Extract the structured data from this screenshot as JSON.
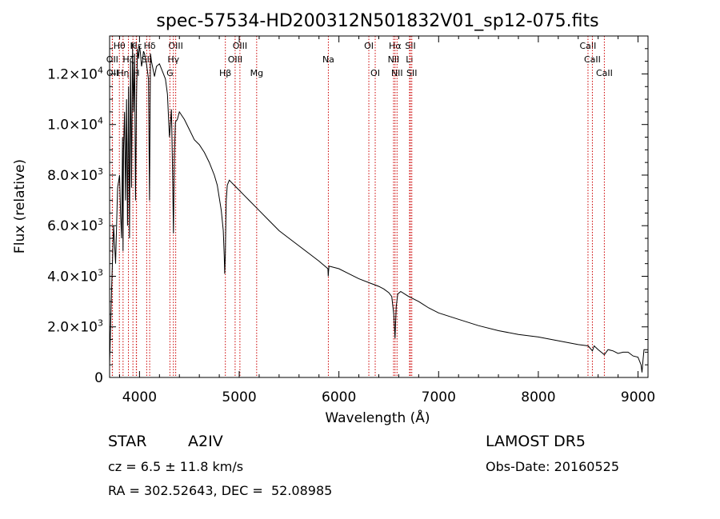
{
  "chart_data": {
    "type": "line",
    "title": "spec-57534-HD200312N501832V01_sp12-075.fits",
    "xlabel": "Wavelength (Å)",
    "ylabel": "Flux (relative)",
    "xlim": [
      3700,
      9100
    ],
    "ylim": [
      0,
      13500
    ],
    "x_ticks": [
      {
        "value": 4000,
        "label": "4000"
      },
      {
        "value": 5000,
        "label": "5000"
      },
      {
        "value": 6000,
        "label": "6000"
      },
      {
        "value": 7000,
        "label": "7000"
      },
      {
        "value": 8000,
        "label": "8000"
      },
      {
        "value": 9000,
        "label": "9000"
      }
    ],
    "y_ticks": [
      {
        "value": 0,
        "label": "0"
      },
      {
        "value": 2000,
        "label": "2.0×10",
        "exp": "3"
      },
      {
        "value": 4000,
        "label": "4.0×10",
        "exp": "3"
      },
      {
        "value": 6000,
        "label": "6.0×10",
        "exp": "3"
      },
      {
        "value": 8000,
        "label": "8.0×10",
        "exp": "3"
      },
      {
        "value": 10000,
        "label": "1.0×10",
        "exp": "4"
      },
      {
        "value": 12000,
        "label": "1.2×10",
        "exp": "4"
      }
    ],
    "series": [
      {
        "x": [
          3700,
          3720,
          3740,
          3760,
          3780,
          3800,
          3810,
          3820,
          3830,
          3835,
          3840,
          3850,
          3860,
          3870,
          3880,
          3890,
          3900,
          3910,
          3920,
          3930,
          3940,
          3950,
          3960,
          3970,
          3980,
          3990,
          4000,
          4010,
          4020,
          4030,
          4040,
          4050,
          4060,
          4070,
          4080,
          4090,
          4100,
          4110,
          4120,
          4130,
          4150,
          4170,
          4200,
          4230,
          4260,
          4280,
          4300,
          4320,
          4330,
          4340,
          4350,
          4360,
          4380,
          4400,
          4450,
          4500,
          4550,
          4600,
          4650,
          4700,
          4750,
          4780,
          4800,
          4820,
          4840,
          4850,
          4855,
          4861,
          4866,
          4870,
          4880,
          4900,
          4950,
          5000,
          5050,
          5100,
          5200,
          5300,
          5400,
          5500,
          5600,
          5700,
          5800,
          5890,
          5893,
          5896,
          5900,
          6000,
          6100,
          6200,
          6300,
          6400,
          6450,
          6500,
          6530,
          6550,
          6560,
          6563,
          6567,
          6575,
          6590,
          6620,
          6700,
          6800,
          6900,
          7000,
          7200,
          7400,
          7600,
          7800,
          8000,
          8200,
          8400,
          8500,
          8542,
          8560,
          8600,
          8662,
          8700,
          8750,
          8800,
          8850,
          8900,
          8950,
          9000,
          9030,
          9040,
          9050,
          9060,
          9100
        ],
        "y": [
          500,
          3500,
          6000,
          4500,
          7500,
          8000,
          6500,
          5500,
          9500,
          5000,
          9000,
          10500,
          7000,
          11000,
          6000,
          11500,
          5500,
          12500,
          7500,
          13000,
          10500,
          12800,
          7000,
          11200,
          13000,
          12600,
          13100,
          12800,
          12300,
          12500,
          12900,
          12800,
          12600,
          12400,
          12100,
          11800,
          7000,
          12800,
          12500,
          12300,
          11900,
          12300,
          12400,
          12100,
          11800,
          11200,
          9500,
          10600,
          8500,
          5700,
          8800,
          10100,
          10200,
          10500,
          10200,
          9800,
          9400,
          9200,
          8900,
          8500,
          8000,
          7600,
          7100,
          6600,
          5800,
          4800,
          4100,
          4900,
          6200,
          7000,
          7600,
          7800,
          7600,
          7400,
          7200,
          7000,
          6600,
          6200,
          5800,
          5500,
          5200,
          4900,
          4600,
          4300,
          4000,
          4200,
          4400,
          4300,
          4100,
          3900,
          3750,
          3600,
          3500,
          3350,
          3200,
          2500,
          1800,
          1550,
          2000,
          2800,
          3300,
          3400,
          3200,
          3000,
          2750,
          2550,
          2300,
          2050,
          1850,
          1700,
          1600,
          1450,
          1300,
          1250,
          1050,
          1250,
          1100,
          900,
          1100,
          1050,
          950,
          1000,
          1000,
          850,
          800,
          500,
          200,
          700,
          1100,
          1100
        ]
      }
    ],
    "line_markers": [
      {
        "name": "Hθ",
        "wl": 3798,
        "row": 1
      },
      {
        "name": "OII",
        "wl": 3727,
        "row": 2
      },
      {
        "name": "OII",
        "wl": 3729,
        "row": 3
      },
      {
        "name": "K",
        "wl": 3934,
        "row": 1
      },
      {
        "name": "Hε",
        "wl": 3970,
        "row": 1
      },
      {
        "name": "Hη",
        "wl": 3835,
        "row": 3
      },
      {
        "name": "Hζ",
        "wl": 3889,
        "row": 2
      },
      {
        "name": "H",
        "wl": 3968,
        "row": 3
      },
      {
        "name": "SII",
        "wl": 4072,
        "row": 2
      },
      {
        "name": "Hδ",
        "wl": 4102,
        "row": 1
      },
      {
        "name": "OIII",
        "wl": 4363,
        "row": 1
      },
      {
        "name": "Hγ",
        "wl": 4340,
        "row": 2
      },
      {
        "name": "G",
        "wl": 4305,
        "row": 3
      },
      {
        "name": "OIII",
        "wl": 5007,
        "row": 1
      },
      {
        "name": "OIII",
        "wl": 4959,
        "row": 2
      },
      {
        "name": "Hβ",
        "wl": 4861,
        "row": 3
      },
      {
        "name": "Mg",
        "wl": 5175,
        "row": 3
      },
      {
        "name": "Na",
        "wl": 5894,
        "row": 2
      },
      {
        "name": "OI",
        "wl": 6300,
        "row": 1
      },
      {
        "name": "OI",
        "wl": 6364,
        "row": 3
      },
      {
        "name": "Hα",
        "wl": 6563,
        "row": 1
      },
      {
        "name": "NII",
        "wl": 6548,
        "row": 2
      },
      {
        "name": "NII",
        "wl": 6583,
        "row": 3
      },
      {
        "name": "SII",
        "wl": 6717,
        "row": 1
      },
      {
        "name": "Li",
        "wl": 6708,
        "row": 2
      },
      {
        "name": "SII",
        "wl": 6731,
        "row": 3
      },
      {
        "name": "CaII",
        "wl": 8498,
        "row": 1
      },
      {
        "name": "CaII",
        "wl": 8542,
        "row": 2
      },
      {
        "name": "CaII",
        "wl": 8662,
        "row": 3
      }
    ],
    "line_color": "#cc0000",
    "grid": false
  },
  "info": {
    "object_type": "STAR",
    "subclass": "A2IV",
    "survey": "LAMOST DR5",
    "redshift": "cz = 6.5 ± 11.8 km/s",
    "obs_date": "Obs-Date: 20160525",
    "coords": "RA = 302.52643, DEC =  52.08985"
  }
}
